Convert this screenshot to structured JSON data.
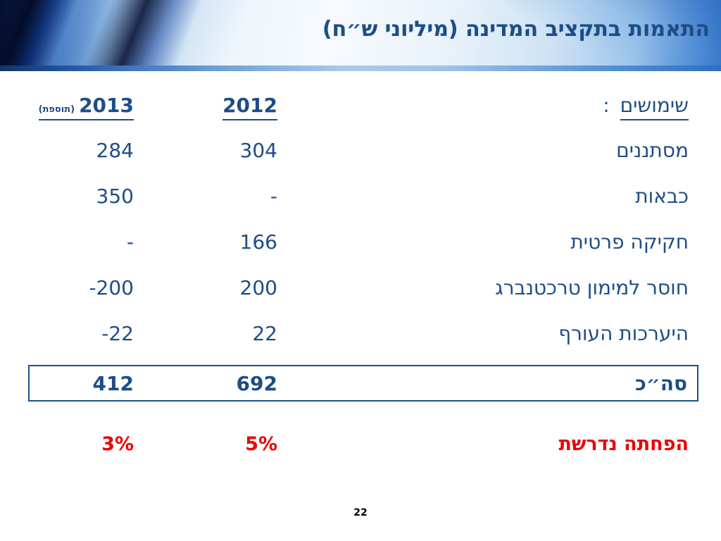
{
  "slide": {
    "title": "התאמות בתקציב המדינה (מיליוני ש״ח)",
    "page_number": "22"
  },
  "table": {
    "header": {
      "uses_label": "שימושים",
      "uses_colon": ":",
      "col_2012": "2012",
      "col_2013": "2013",
      "col_2013_note": "(תוספת)"
    },
    "rows": [
      {
        "label": "מסתננים",
        "y2012": "304",
        "y2013": "284"
      },
      {
        "label": "כבאות",
        "y2012": "-",
        "y2013": "350"
      },
      {
        "label": "חקיקה פרטית",
        "y2012": "166",
        "y2013": "-"
      },
      {
        "label": "חוסר למימון טרכטנברג",
        "y2012": "200",
        "y2013": "-200"
      },
      {
        "label": "היערכות העורף",
        "y2012": "22",
        "y2013": "-22"
      }
    ],
    "total": {
      "label": "סה״כ",
      "y2012": "692",
      "y2013": "412"
    },
    "reduction": {
      "label": "הפחתה נדרשת",
      "y2012": "5%",
      "y2013": "3%"
    }
  },
  "colors": {
    "text_blue": "#1d4d86",
    "accent_red": "#ee0000",
    "box_border": "#1e4f8a"
  }
}
